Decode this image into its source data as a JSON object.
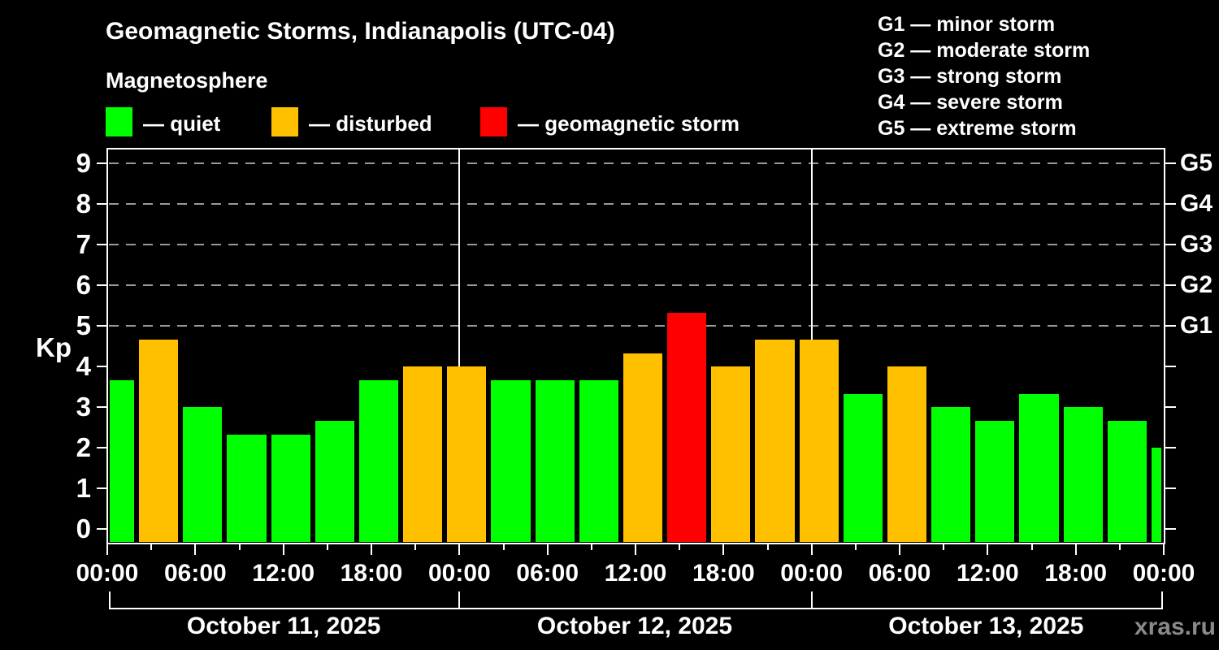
{
  "header": {
    "title": "Geomagnetic Storms, Indianapolis (UTC-04)",
    "subtitle": "Magnetosphere"
  },
  "legend": {
    "items": [
      {
        "label": "— quiet",
        "status": "quiet",
        "color": "#00FF00"
      },
      {
        "label": "— disturbed",
        "status": "disturbed",
        "color": "#FFC000"
      },
      {
        "label": "— geomagnetic storm",
        "status": "storm",
        "color": "#FF0000"
      }
    ]
  },
  "g_legend": [
    {
      "text": "G1 — minor storm"
    },
    {
      "text": "G2 — moderate storm"
    },
    {
      "text": "G3 — strong storm"
    },
    {
      "text": "G4 — severe storm"
    },
    {
      "text": "G5 — extreme storm"
    }
  ],
  "axis": {
    "kp_label": "Kp",
    "y_tick_labels": [
      "0",
      "1",
      "2",
      "3",
      "4",
      "5",
      "6",
      "7",
      "8",
      "9"
    ],
    "right_axis_labels": [
      {
        "kp": 5,
        "label": "G1"
      },
      {
        "kp": 6,
        "label": "G2"
      },
      {
        "kp": 7,
        "label": "G3"
      },
      {
        "kp": 8,
        "label": "G4"
      },
      {
        "kp": 9,
        "label": "G5"
      }
    ],
    "x_tick_labels": [
      "00:00",
      "06:00",
      "12:00",
      "18:00",
      "00:00",
      "06:00",
      "12:00",
      "18:00",
      "00:00",
      "06:00",
      "12:00",
      "18:00",
      "00:00"
    ]
  },
  "dates": [
    "October 11, 2025",
    "October 12, 2025",
    "October 13, 2025"
  ],
  "watermark": "xras.ru",
  "chart_data": {
    "type": "bar",
    "title": "Geomagnetic Storms, Indianapolis (UTC-04)",
    "ylabel": "Kp",
    "ylim": [
      0,
      9
    ],
    "x_hours_range": [
      0,
      72
    ],
    "hours_per_bar": 3,
    "gridlines_kp": [
      5,
      6,
      7,
      8,
      9
    ],
    "day_boundaries_h": [
      24,
      48
    ],
    "legend_position": "top",
    "colors": {
      "quiet": "#00FF00",
      "disturbed": "#FFC000",
      "storm": "#FF0000"
    },
    "bars": [
      {
        "start_h": 0,
        "end_h": 2,
        "kp": 3.67,
        "status": "quiet"
      },
      {
        "start_h": 2,
        "end_h": 5,
        "kp": 4.67,
        "status": "disturbed"
      },
      {
        "start_h": 5,
        "end_h": 8,
        "kp": 3.0,
        "status": "quiet"
      },
      {
        "start_h": 8,
        "end_h": 11,
        "kp": 2.33,
        "status": "quiet"
      },
      {
        "start_h": 11,
        "end_h": 14,
        "kp": 2.33,
        "status": "quiet"
      },
      {
        "start_h": 14,
        "end_h": 17,
        "kp": 2.67,
        "status": "quiet"
      },
      {
        "start_h": 17,
        "end_h": 20,
        "kp": 3.67,
        "status": "quiet"
      },
      {
        "start_h": 20,
        "end_h": 23,
        "kp": 4.0,
        "status": "disturbed"
      },
      {
        "start_h": 23,
        "end_h": 26,
        "kp": 4.0,
        "status": "disturbed"
      },
      {
        "start_h": 26,
        "end_h": 29,
        "kp": 3.67,
        "status": "quiet"
      },
      {
        "start_h": 29,
        "end_h": 32,
        "kp": 3.67,
        "status": "quiet"
      },
      {
        "start_h": 32,
        "end_h": 35,
        "kp": 3.67,
        "status": "quiet"
      },
      {
        "start_h": 35,
        "end_h": 38,
        "kp": 4.33,
        "status": "disturbed"
      },
      {
        "start_h": 38,
        "end_h": 41,
        "kp": 5.33,
        "status": "storm"
      },
      {
        "start_h": 41,
        "end_h": 44,
        "kp": 4.0,
        "status": "disturbed"
      },
      {
        "start_h": 44,
        "end_h": 47,
        "kp": 4.67,
        "status": "disturbed"
      },
      {
        "start_h": 47,
        "end_h": 50,
        "kp": 4.67,
        "status": "disturbed"
      },
      {
        "start_h": 50,
        "end_h": 53,
        "kp": 3.33,
        "status": "quiet"
      },
      {
        "start_h": 53,
        "end_h": 56,
        "kp": 4.0,
        "status": "disturbed"
      },
      {
        "start_h": 56,
        "end_h": 59,
        "kp": 3.0,
        "status": "quiet"
      },
      {
        "start_h": 59,
        "end_h": 62,
        "kp": 2.67,
        "status": "quiet"
      },
      {
        "start_h": 62,
        "end_h": 65,
        "kp": 3.33,
        "status": "quiet"
      },
      {
        "start_h": 65,
        "end_h": 68,
        "kp": 3.0,
        "status": "quiet"
      },
      {
        "start_h": 68,
        "end_h": 71,
        "kp": 2.67,
        "status": "quiet"
      },
      {
        "start_h": 71,
        "end_h": 72,
        "kp": 2.0,
        "status": "quiet"
      }
    ]
  }
}
